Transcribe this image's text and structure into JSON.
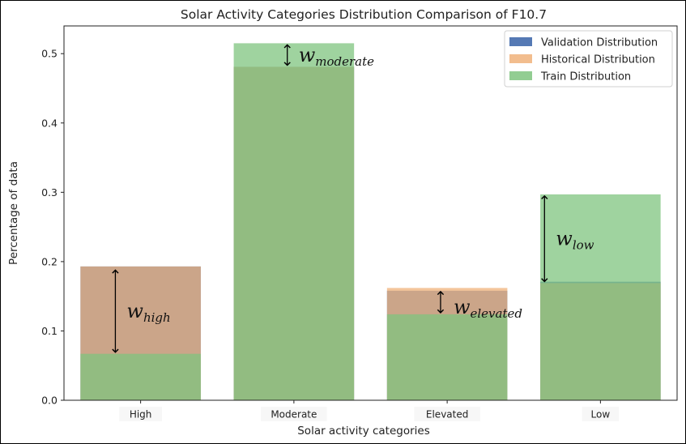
{
  "chart_data": {
    "type": "bar",
    "title": "Solar Activity Categories Distribution Comparison of F10.7",
    "xlabel": "Solar activity categories",
    "ylabel": "Percentage of data",
    "categories": [
      "High",
      "Moderate",
      "Elevated",
      "Low"
    ],
    "ylim": [
      0,
      0.54
    ],
    "yticks": [
      "0.0",
      "0.1",
      "0.2",
      "0.3",
      "0.4",
      "0.5"
    ],
    "grid": false,
    "legend_position": "top-right",
    "series": [
      {
        "name": "Validation Distribution",
        "color": "#4c72b0",
        "values": [
          0.193,
          0.481,
          0.158,
          0.171
        ]
      },
      {
        "name": "Historical Distribution",
        "color": "#f0b27a",
        "values": [
          0.193,
          0.481,
          0.162,
          0.169
        ]
      },
      {
        "name": "Train Distribution",
        "color": "#7fc47f",
        "values": [
          0.067,
          0.515,
          0.124,
          0.297
        ]
      }
    ],
    "annotations": [
      {
        "category": "High",
        "label": "w",
        "subscript": "high",
        "from": 0.067,
        "to": 0.19
      },
      {
        "category": "Moderate",
        "label": "w",
        "subscript": "moderate",
        "from": 0.481,
        "to": 0.515
      },
      {
        "category": "Elevated",
        "label": "w",
        "subscript": "elevated",
        "from": 0.124,
        "to": 0.159
      },
      {
        "category": "Low",
        "label": "w",
        "subscript": "low",
        "from": 0.169,
        "to": 0.297
      }
    ]
  }
}
